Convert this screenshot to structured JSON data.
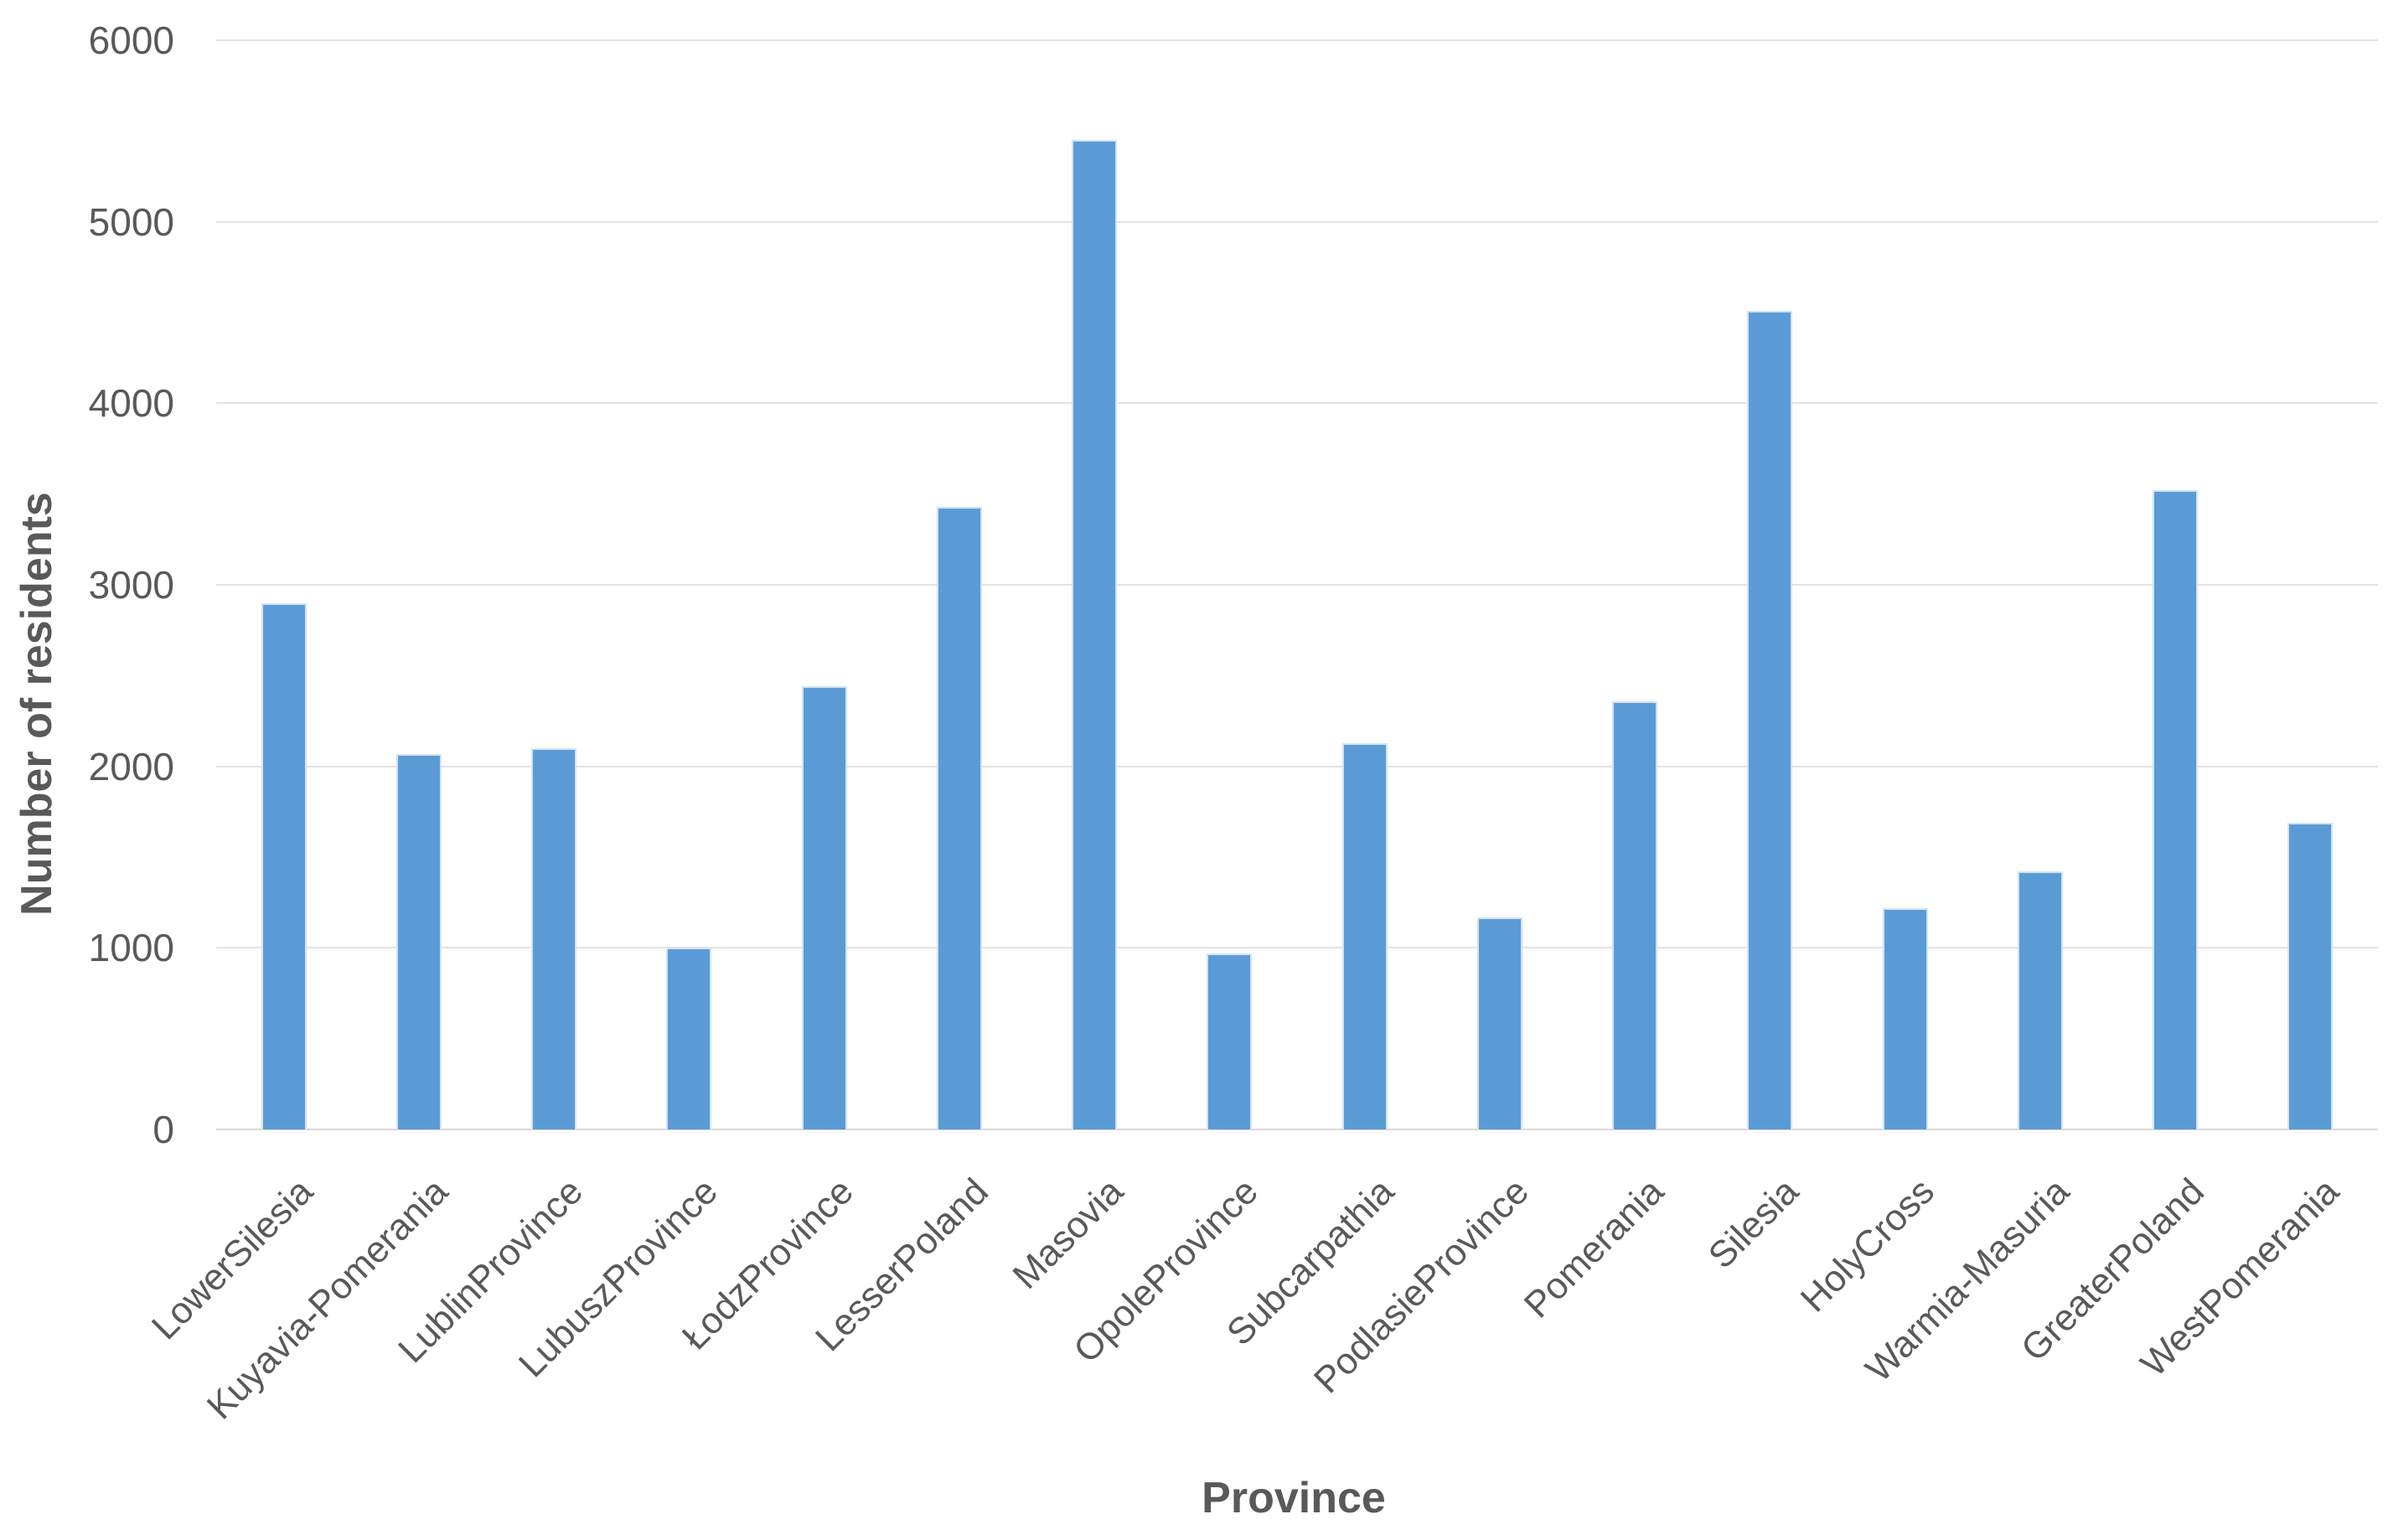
{
  "chart_data": {
    "type": "bar",
    "title": "",
    "xlabel": "Province",
    "ylabel": "Number of residents",
    "categories": [
      "LowerSilesia",
      "Kuyavia-Pomerania",
      "LublinProvince",
      "LubuszProvince",
      "ŁodzProvince",
      "LesserPoland",
      "Masovia",
      "OpoleProvince",
      "Subcarpathia",
      "PodlasieProvince",
      "Pomerania",
      "Silesia",
      "HolyCross",
      "Warmia-Masuria",
      "GreaterPoland",
      "WestPomerania"
    ],
    "values": [
      2900,
      2070,
      2100,
      1000,
      2440,
      3430,
      5450,
      970,
      2130,
      1170,
      2360,
      4510,
      1220,
      1420,
      3520,
      1690
    ],
    "ylim": [
      0,
      6000
    ],
    "yticks": [
      0,
      1000,
      2000,
      3000,
      4000,
      5000,
      6000
    ],
    "grid": "horizontal",
    "legend": "none",
    "bar_color": "#5b9bd5",
    "bar_edge_color": "#cfe3f5",
    "gridline_color": "#e2e2e2",
    "text_color": "#595959"
  }
}
